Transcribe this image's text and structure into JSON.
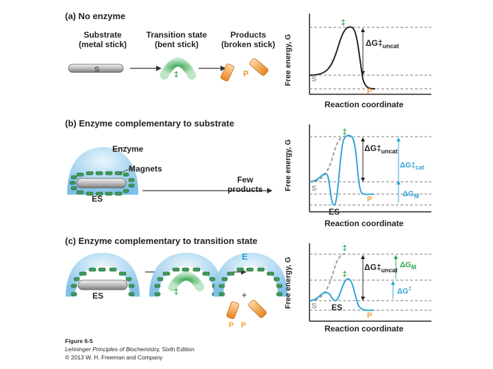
{
  "figure": {
    "panel_a": {
      "title": "(a) No enzyme",
      "substrate_label_1": "Substrate",
      "substrate_label_2": "(metal stick)",
      "transition_label_1": "Transition state",
      "transition_label_2": "(bent stick)",
      "products_label_1": "Products",
      "products_label_2": "(broken stick)",
      "stick_s": "S",
      "ts_mark": "‡",
      "product_p": "P",
      "graph": {
        "y_label": "Free energy, G",
        "x_label": "Reaction coordinate",
        "peak_mark": "‡",
        "s_label": "S",
        "p_label": "P",
        "dg_text": "ΔG‡",
        "dg_sub": "uncat"
      }
    },
    "panel_b": {
      "title": "(b) Enzyme complementary to substrate",
      "enzyme_label": "Enzyme",
      "magnets_label": "Magnets",
      "es_label": "ES",
      "few_label_1": "Few",
      "few_label_2": "products",
      "graph": {
        "y_label": "Free energy, G",
        "x_label": "Reaction coordinate",
        "peak_mark": "‡",
        "s_label": "S",
        "p_label": "P",
        "es_label": "ES",
        "dg_uncat_text": "ΔG‡",
        "dg_uncat_sub": "uncat",
        "dg_cat_text": "ΔG‡",
        "dg_cat_sub": "cat",
        "dgm_text": "ΔG",
        "dgm_sub": "M"
      }
    },
    "panel_c": {
      "title": "(c) Enzyme complementary to transition state",
      "es_label": "ES",
      "ts_mark": "‡",
      "e_label": "E",
      "plus": "+",
      "p1": "P",
      "p2": "P",
      "graph": {
        "y_label": "Free energy, G",
        "x_label": "Reaction coordinate",
        "peak_mark": "‡",
        "mid_mark": "‡",
        "s_label": "S",
        "p_label": "P",
        "es_label": "ES",
        "dg_uncat_text": "ΔG‡",
        "dg_uncat_sub": "uncat",
        "dgm_text": "ΔG",
        "dgm_sub": "M",
        "dgd_text": "ΔG",
        "dgd_sup": "‡"
      }
    },
    "credit": {
      "line1": "Figure 6-5",
      "line2a": "Lehninger Principles of Biochemistry,",
      "line2b": " Sixth Edition",
      "line3": "© 2013 W. H. Freeman and Company"
    },
    "colors": {
      "enzyme_blue": "#a8d4ee",
      "magnet_green": "#3f9a59",
      "ts_green": "#2fa24a",
      "curve_blue": "#2ea3d6",
      "orange": "#f39c34",
      "gray": "#9a9a9a"
    }
  }
}
